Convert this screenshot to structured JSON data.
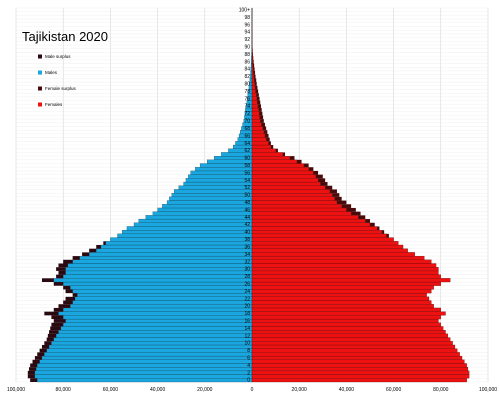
{
  "chart_data": {
    "type": "bar",
    "orientation": "horizontal",
    "title": "Tajikistan 2020",
    "grid": true,
    "legend_placement": "top-left",
    "x_tick_labels": [
      "100,000",
      "80,000",
      "60,000",
      "40,000",
      "20,000",
      "0",
      "20,000",
      "40,000",
      "60,000",
      "80,000",
      "100,000"
    ],
    "xlim": [
      -100000,
      100000
    ],
    "age_tick_labels": [
      "0",
      "2",
      "4",
      "6",
      "8",
      "10",
      "12",
      "14",
      "16",
      "18",
      "20",
      "22",
      "24",
      "26",
      "28",
      "30",
      "32",
      "34",
      "36",
      "38",
      "40",
      "42",
      "44",
      "46",
      "48",
      "50",
      "52",
      "54",
      "56",
      "58",
      "60",
      "62",
      "64",
      "66",
      "68",
      "70",
      "72",
      "74",
      "76",
      "78",
      "80",
      "82",
      "84",
      "86",
      "88",
      "90",
      "92",
      "94",
      "96",
      "98",
      "100+"
    ],
    "legend": [
      {
        "label": "Male surplus",
        "color": "#2a0a10"
      },
      {
        "label": "Males",
        "color": "#1aa7e0"
      },
      {
        "label": "Female surplus",
        "color": "#4a0a0a"
      },
      {
        "label": "Females",
        "color": "#ee1111"
      }
    ],
    "ages": [
      "0",
      "1",
      "2",
      "3",
      "4",
      "5",
      "6",
      "7",
      "8",
      "9",
      "10",
      "11",
      "12",
      "13",
      "14",
      "15",
      "16",
      "17",
      "18",
      "19",
      "20",
      "21",
      "22",
      "23",
      "24",
      "25",
      "26",
      "27",
      "28",
      "29",
      "30",
      "31",
      "32",
      "33",
      "34",
      "35",
      "36",
      "37",
      "38",
      "39",
      "40",
      "41",
      "42",
      "43",
      "44",
      "45",
      "46",
      "47",
      "48",
      "49",
      "50",
      "51",
      "52",
      "53",
      "54",
      "55",
      "56",
      "57",
      "58",
      "59",
      "60",
      "61",
      "62",
      "63",
      "64",
      "65",
      "66",
      "67",
      "68",
      "69",
      "70",
      "71",
      "72",
      "73",
      "74",
      "75",
      "76",
      "77",
      "78",
      "79",
      "80",
      "81",
      "82",
      "83",
      "84",
      "85",
      "86",
      "87",
      "88",
      "89",
      "90",
      "91",
      "92",
      "93",
      "94",
      "95",
      "96",
      "97",
      "98",
      "99",
      "100+"
    ],
    "series": [
      {
        "name": "Males",
        "values": [
          94000,
          95000,
          95000,
          94500,
          94000,
          93000,
          92000,
          91000,
          90000,
          89000,
          88000,
          87000,
          86500,
          86000,
          85500,
          85000,
          84000,
          85000,
          88000,
          84000,
          82000,
          80000,
          79000,
          76000,
          79000,
          80000,
          84000,
          89000,
          83000,
          82000,
          83000,
          82000,
          80000,
          76000,
          72000,
          69000,
          66000,
          63000,
          60000,
          57000,
          55000,
          53000,
          50000,
          48000,
          45000,
          42000,
          40000,
          38000,
          36000,
          35000,
          34000,
          33000,
          31000,
          29000,
          28000,
          27000,
          26000,
          24000,
          22000,
          19000,
          16000,
          13000,
          10000,
          8000,
          7000,
          6000,
          5500,
          5000,
          4500,
          4000,
          3500,
          3200,
          3000,
          2800,
          2500,
          2200,
          2000,
          1800,
          1500,
          1300,
          1100,
          900,
          700,
          600,
          500,
          400,
          300,
          250,
          200,
          150,
          120,
          90,
          70,
          50,
          40,
          30,
          20,
          10,
          5,
          3,
          2
        ]
      },
      {
        "name": "Females",
        "values": [
          91000,
          92000,
          92000,
          91500,
          91000,
          90000,
          89000,
          88000,
          87000,
          86000,
          85000,
          84000,
          83000,
          82000,
          81000,
          80000,
          79000,
          80000,
          82000,
          80000,
          77000,
          76000,
          75000,
          74000,
          76000,
          77000,
          80000,
          84000,
          80000,
          79000,
          79000,
          78000,
          76000,
          73000,
          69000,
          66000,
          64000,
          62000,
          60000,
          58000,
          56000,
          54000,
          52000,
          50000,
          48000,
          46000,
          44000,
          42000,
          40000,
          38000,
          37000,
          36000,
          34000,
          32000,
          31000,
          30000,
          28000,
          26000,
          24000,
          21000,
          18000,
          14000,
          11000,
          9000,
          8000,
          7500,
          7000,
          6500,
          6000,
          5500,
          5000,
          4700,
          4400,
          4100,
          3800,
          3500,
          3200,
          2900,
          2600,
          2300,
          2000,
          1800,
          1500,
          1300,
          1100,
          900,
          700,
          550,
          400,
          300,
          220,
          160,
          110,
          80,
          55,
          35,
          20,
          12,
          6,
          3,
          2
        ]
      }
    ]
  }
}
